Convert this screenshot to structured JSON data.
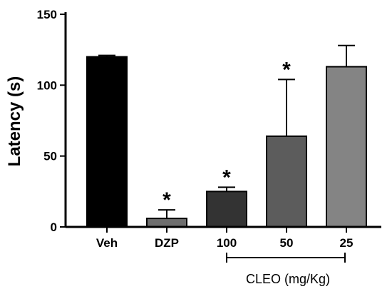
{
  "chart_data": {
    "type": "bar",
    "ylabel": "Latency (s)",
    "ylim": [
      0,
      150
    ],
    "yticks": [
      "0",
      "50",
      "100",
      "150"
    ],
    "grid": false,
    "categories": [
      "Veh",
      "DZP",
      "100",
      "50",
      "25"
    ],
    "values": [
      120,
      6,
      25,
      64,
      113
    ],
    "error": [
      1,
      6,
      3,
      40,
      15
    ],
    "significance": [
      "",
      "*",
      "*",
      "*",
      ""
    ],
    "colors": [
      "#000000",
      "#6e6e6e",
      "#333333",
      "#5c5c5c",
      "#848484"
    ],
    "group_label": "CLEO (mg/Kg)"
  }
}
